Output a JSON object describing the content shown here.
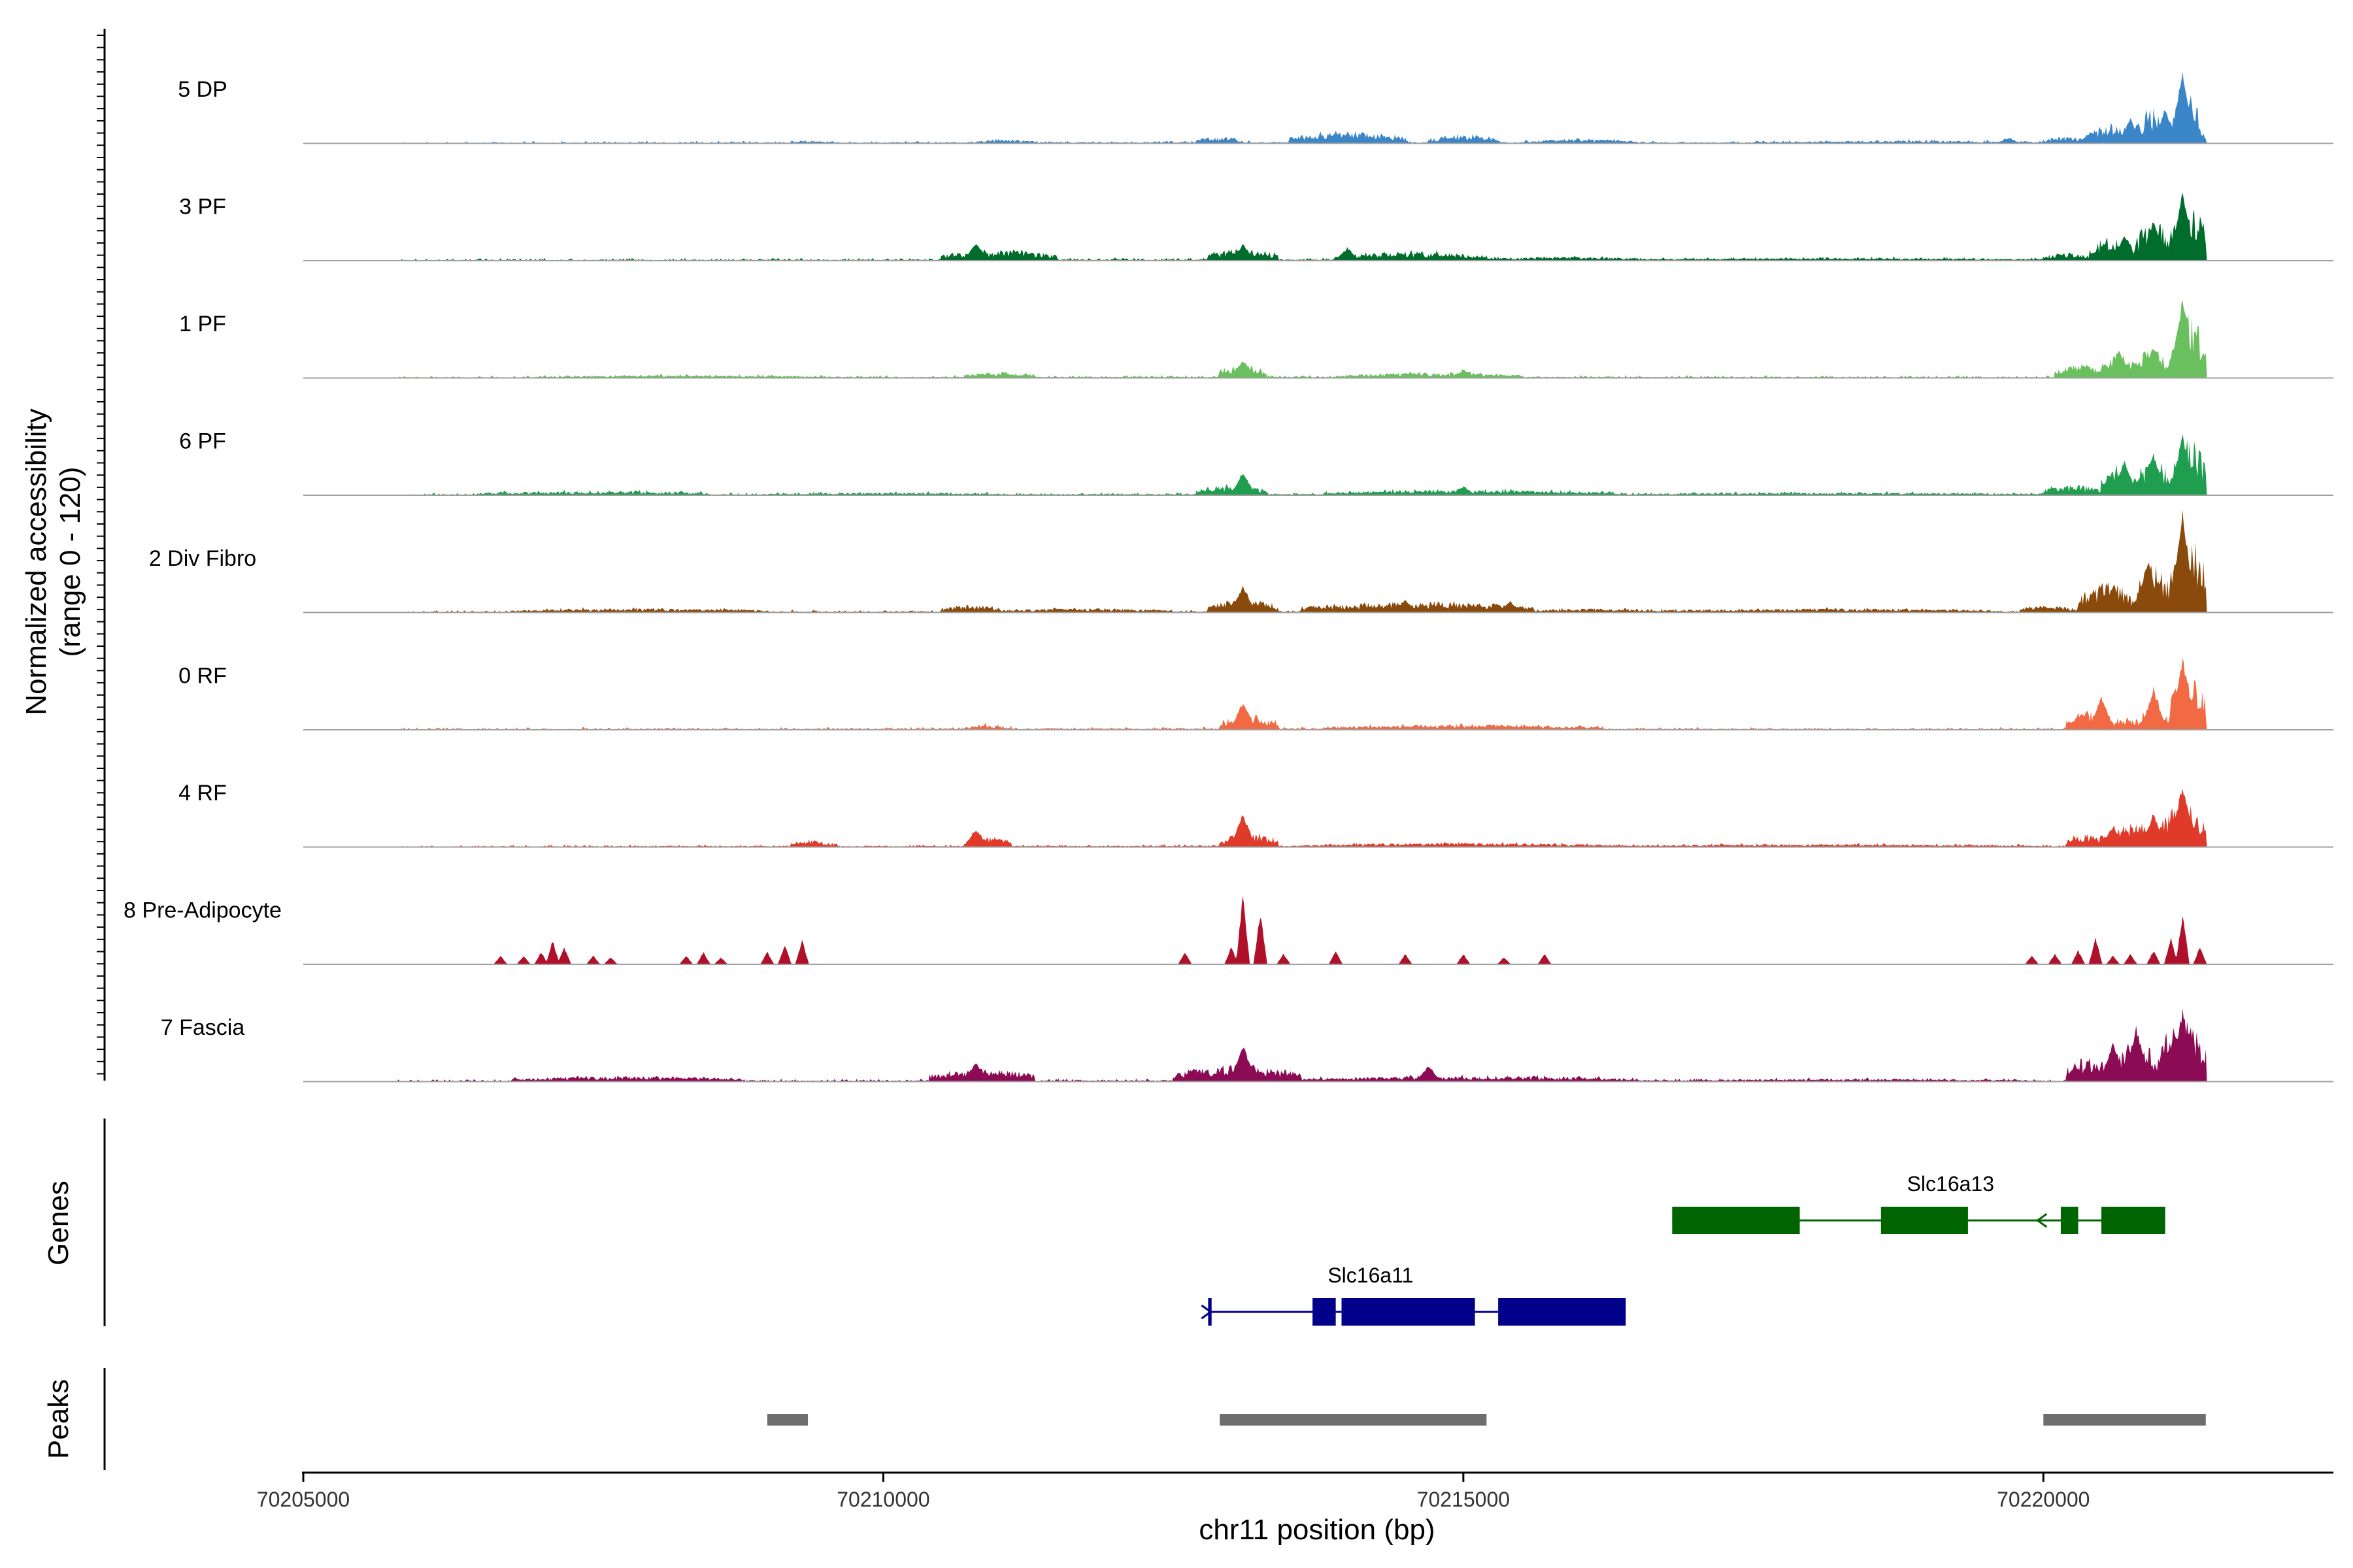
{
  "chart_data": {
    "type": "area",
    "ylabel": "Normalized accessibility",
    "ylabel_range": "(range 0 - 120)",
    "xlabel": "chr11 position (bp)",
    "xlim": [
      70205000,
      70222500
    ],
    "xticks": [
      70205000,
      70210000,
      70215000,
      70220000
    ],
    "xtick_labels": [
      "70205000",
      "70210000",
      "70215000",
      "70220000"
    ],
    "ylim": [
      0,
      120
    ],
    "grid": false,
    "series": [
      {
        "name": "5 DP",
        "color": "#3a86c8",
        "noise": 2,
        "peaks": [
          [
            70206000,
            70221400,
            1
          ],
          [
            70209200,
            70209600,
            2
          ],
          [
            70210800,
            70211300,
            3
          ],
          [
            70212700,
            70213100,
            5
          ],
          [
            70213500,
            70214500,
            9
          ],
          [
            70214700,
            70215300,
            6
          ],
          [
            70215500,
            70216500,
            3
          ],
          [
            70217500,
            70220000,
            2
          ],
          [
            70220000,
            70220400,
            5
          ],
          [
            70220400,
            70220800,
            14
          ],
          [
            70220800,
            70221100,
            26
          ],
          [
            70221100,
            70221350,
            41
          ],
          [
            70221350,
            70221400,
            8
          ]
        ],
        "spikes": [
          [
            70213900,
            12
          ],
          [
            70214200,
            8
          ],
          [
            70214900,
            6
          ],
          [
            70216200,
            4
          ],
          [
            70219700,
            6
          ],
          [
            70220400,
            12
          ],
          [
            70220750,
            28
          ],
          [
            70221050,
            40
          ],
          [
            70221200,
            78
          ]
        ]
      },
      {
        "name": "3 PF",
        "color": "#006d2c",
        "noise": 2,
        "peaks": [
          [
            70205800,
            70221400,
            1
          ],
          [
            70210500,
            70211500,
            8
          ],
          [
            70212800,
            70213400,
            9
          ],
          [
            70213900,
            70215200,
            7
          ],
          [
            70215200,
            70216500,
            3
          ],
          [
            70216500,
            70220000,
            2
          ],
          [
            70220000,
            70220400,
            6
          ],
          [
            70220400,
            70220800,
            18
          ],
          [
            70220800,
            70221100,
            30
          ],
          [
            70221100,
            70221400,
            45
          ]
        ],
        "spikes": [
          [
            70210800,
            20
          ],
          [
            70213100,
            18
          ],
          [
            70214000,
            14
          ],
          [
            70220700,
            30
          ],
          [
            70220950,
            46
          ],
          [
            70221200,
            78
          ]
        ]
      },
      {
        "name": "1 PF",
        "color": "#6abf5e",
        "noise": 2,
        "peaks": [
          [
            70205800,
            70221400,
            1
          ],
          [
            70207000,
            70209500,
            2
          ],
          [
            70210700,
            70211300,
            4
          ],
          [
            70212900,
            70213300,
            10
          ],
          [
            70213900,
            70215500,
            4
          ],
          [
            70220100,
            70220500,
            10
          ],
          [
            70220500,
            70220800,
            18
          ],
          [
            70220800,
            70221100,
            22
          ],
          [
            70221100,
            70221400,
            48
          ]
        ],
        "spikes": [
          [
            70213100,
            20
          ],
          [
            70215000,
            9
          ],
          [
            70220650,
            30
          ],
          [
            70220950,
            36
          ],
          [
            70221200,
            92
          ]
        ]
      },
      {
        "name": "6 PF",
        "color": "#1f9e4f",
        "noise": 2,
        "peaks": [
          [
            70205800,
            70221400,
            1
          ],
          [
            70206500,
            70208500,
            3
          ],
          [
            70209000,
            70211000,
            2
          ],
          [
            70212700,
            70213300,
            8
          ],
          [
            70213800,
            70216300,
            4
          ],
          [
            70216500,
            70220000,
            2
          ],
          [
            70220000,
            70220500,
            8
          ],
          [
            70220500,
            70220800,
            22
          ],
          [
            70220800,
            70221100,
            28
          ],
          [
            70221100,
            70221400,
            42
          ]
        ],
        "spikes": [
          [
            70213100,
            26
          ],
          [
            70215000,
            10
          ],
          [
            70220700,
            40
          ],
          [
            70220950,
            48
          ],
          [
            70221200,
            70
          ]
        ]
      },
      {
        "name": "2 Div Fibro",
        "color": "#8a4a0b",
        "noise": 2,
        "peaks": [
          [
            70206000,
            70221400,
            1
          ],
          [
            70206800,
            70209000,
            3
          ],
          [
            70210500,
            70211000,
            6
          ],
          [
            70211000,
            70212500,
            3
          ],
          [
            70212800,
            70213400,
            10
          ],
          [
            70213600,
            70215600,
            8
          ],
          [
            70215600,
            70216600,
            3
          ],
          [
            70216600,
            70219600,
            3
          ],
          [
            70219800,
            70220300,
            5
          ],
          [
            70220300,
            70220800,
            22
          ],
          [
            70220800,
            70221100,
            36
          ],
          [
            70221100,
            70221400,
            58
          ]
        ],
        "spikes": [
          [
            70213100,
            30
          ],
          [
            70214500,
            14
          ],
          [
            70215400,
            12
          ],
          [
            70220600,
            30
          ],
          [
            70220900,
            60
          ],
          [
            70221200,
            118
          ]
        ]
      },
      {
        "name": "0 RF",
        "color": "#f16a43",
        "noise": 2,
        "peaks": [
          [
            70205800,
            70221400,
            1
          ],
          [
            70210700,
            70211100,
            4
          ],
          [
            70212900,
            70213400,
            12
          ],
          [
            70213800,
            70216200,
            4
          ],
          [
            70220200,
            70220600,
            16
          ],
          [
            70220600,
            70220850,
            10
          ],
          [
            70220850,
            70221100,
            22
          ],
          [
            70221100,
            70221400,
            42
          ]
        ],
        "spikes": [
          [
            70213100,
            32
          ],
          [
            70220500,
            38
          ],
          [
            70220950,
            46
          ],
          [
            70221200,
            84
          ]
        ]
      },
      {
        "name": "4 RF",
        "color": "#e03a2a",
        "noise": 2,
        "peaks": [
          [
            70205800,
            70221400,
            1
          ],
          [
            70209200,
            70209600,
            5
          ],
          [
            70210700,
            70211100,
            8
          ],
          [
            70212900,
            70213400,
            10
          ],
          [
            70213600,
            70216300,
            3
          ],
          [
            70216300,
            70220000,
            2
          ],
          [
            70220200,
            70220600,
            10
          ],
          [
            70220600,
            70221000,
            18
          ],
          [
            70221000,
            70221400,
            34
          ]
        ],
        "spikes": [
          [
            70210800,
            20
          ],
          [
            70213100,
            38
          ],
          [
            70220600,
            24
          ],
          [
            70220950,
            38
          ],
          [
            70221200,
            72
          ]
        ]
      },
      {
        "name": "8 Pre-Adipocyte",
        "color": "#b0102a",
        "noise": 0,
        "peaks": [],
        "spikes": [
          [
            70206700,
            10
          ],
          [
            70206900,
            10
          ],
          [
            70207050,
            14
          ],
          [
            70207150,
            28
          ],
          [
            70207250,
            20
          ],
          [
            70207500,
            10
          ],
          [
            70207650,
            8
          ],
          [
            70208300,
            10
          ],
          [
            70208450,
            14
          ],
          [
            70208600,
            8
          ],
          [
            70209000,
            14
          ],
          [
            70209150,
            22
          ],
          [
            70209300,
            28
          ],
          [
            70212600,
            14
          ],
          [
            70213000,
            20
          ],
          [
            70213100,
            80
          ],
          [
            70213250,
            60
          ],
          [
            70213450,
            12
          ],
          [
            70213900,
            16
          ],
          [
            70214500,
            12
          ],
          [
            70215000,
            12
          ],
          [
            70215350,
            8
          ],
          [
            70215700,
            12
          ],
          [
            70219900,
            10
          ],
          [
            70220100,
            12
          ],
          [
            70220300,
            16
          ],
          [
            70220450,
            30
          ],
          [
            70220600,
            10
          ],
          [
            70220750,
            12
          ],
          [
            70220950,
            16
          ],
          [
            70221100,
            30
          ],
          [
            70221200,
            58
          ],
          [
            70221350,
            20
          ]
        ]
      },
      {
        "name": "7 Fascia",
        "color": "#8b0b55",
        "noise": 2,
        "peaks": [
          [
            70205800,
            70221400,
            1
          ],
          [
            70206800,
            70208800,
            4
          ],
          [
            70210400,
            70211300,
            10
          ],
          [
            70212500,
            70213600,
            12
          ],
          [
            70213600,
            70216500,
            4
          ],
          [
            70216500,
            70220000,
            2
          ],
          [
            70220200,
            70220600,
            18
          ],
          [
            70220600,
            70221000,
            30
          ],
          [
            70221000,
            70221400,
            46
          ]
        ],
        "spikes": [
          [
            70210800,
            22
          ],
          [
            70213100,
            42
          ],
          [
            70214700,
            18
          ],
          [
            70220600,
            44
          ],
          [
            70220800,
            62
          ],
          [
            70221200,
            82
          ]
        ]
      }
    ],
    "genes": [
      {
        "name": "Slc16a13",
        "strand": "-",
        "start": 70216800,
        "end": 70221050,
        "color": "#006400",
        "exons": [
          [
            70216800,
            70217900
          ],
          [
            70218600,
            70219350
          ],
          [
            70220150,
            70220300
          ],
          [
            70220500,
            70221050
          ]
        ]
      },
      {
        "name": "Slc16a11",
        "strand": "+",
        "start": 70212800,
        "end": 70216400,
        "color": "#00008b",
        "exons": [
          [
            70212800,
            70212830
          ],
          [
            70213700,
            70213900
          ],
          [
            70213950,
            70215100
          ],
          [
            70215300,
            70216400
          ]
        ]
      }
    ],
    "peaks_track": [
      [
        70209000,
        70209350
      ],
      [
        70212900,
        70215200
      ],
      [
        70220000,
        70221400
      ]
    ],
    "panel_labels": {
      "genes": "Genes",
      "peaks": "Peaks"
    }
  }
}
